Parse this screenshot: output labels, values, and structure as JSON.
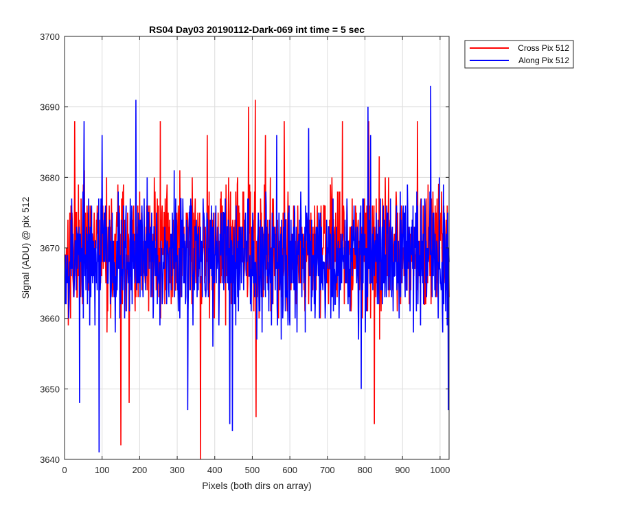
{
  "chart_data": {
    "type": "line",
    "title": "RS04 Day03 20190112-Dark-069 int time = 5 sec",
    "xlabel": "Pixels (both dirs on array)",
    "ylabel": "Signal (ADU) @ pix 512",
    "xlim": [
      0,
      1024
    ],
    "ylim": [
      3640,
      3700
    ],
    "x_ticks": [
      0,
      100,
      200,
      300,
      400,
      500,
      600,
      700,
      800,
      900,
      1000
    ],
    "y_ticks": [
      3640,
      3650,
      3660,
      3670,
      3680,
      3690,
      3700
    ],
    "grid": true,
    "legend_position": "outside-top-right",
    "x_start": 1,
    "x_step": 1,
    "series": [
      {
        "name": "Cross Pix 512",
        "color": "#ff0000",
        "mean": 3670,
        "spread": 4.5,
        "seed": 17,
        "n": 1024,
        "extremes": [
          [
            27,
            3688
          ],
          [
            150,
            3642
          ],
          [
            172,
            3648
          ],
          [
            255,
            3688
          ],
          [
            362,
            3640
          ],
          [
            380,
            3686
          ],
          [
            490,
            3690
          ],
          [
            508,
            3691
          ],
          [
            510,
            3646
          ],
          [
            535,
            3686
          ],
          [
            585,
            3688
          ],
          [
            740,
            3688
          ],
          [
            810,
            3688
          ],
          [
            825,
            3645
          ],
          [
            940,
            3688
          ]
        ]
      },
      {
        "name": "Along Pix 512",
        "color": "#0000ff",
        "mean": 3669,
        "spread": 4.5,
        "seed": 53,
        "n": 1024,
        "extremes": [
          [
            40,
            3648
          ],
          [
            52,
            3688
          ],
          [
            92,
            3641
          ],
          [
            100,
            3686
          ],
          [
            190,
            3691
          ],
          [
            328,
            3647
          ],
          [
            440,
            3645
          ],
          [
            447,
            3644
          ],
          [
            565,
            3686
          ],
          [
            650,
            3687
          ],
          [
            790,
            3650
          ],
          [
            808,
            3690
          ],
          [
            815,
            3686
          ],
          [
            975,
            3693
          ],
          [
            1022,
            3647
          ]
        ]
      }
    ]
  }
}
